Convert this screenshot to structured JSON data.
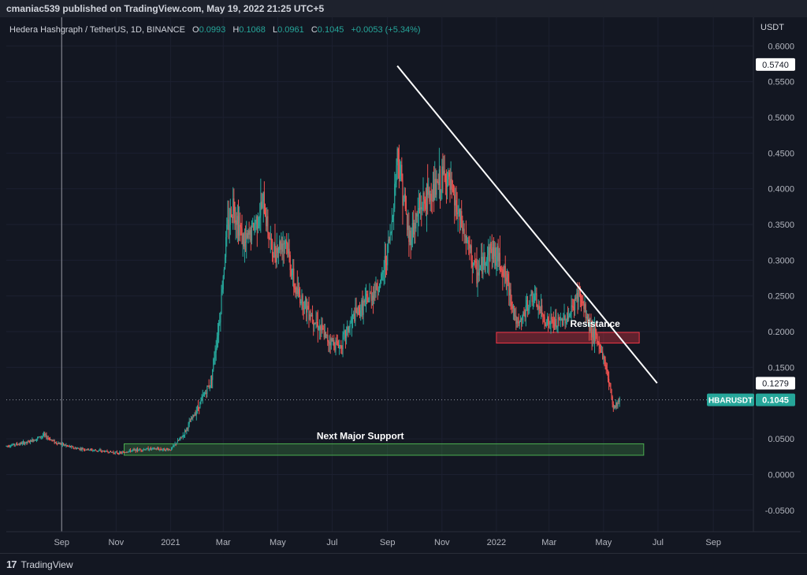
{
  "header": {
    "published": "cmaniac539 published on TradingView.com, May 19, 2022 21:25 UTC+5"
  },
  "footer": {
    "brand": "TradingView"
  },
  "chart_data": {
    "type": "line",
    "title": "Hedera Hashgraph / TetherUS, 1D, BINANCE",
    "ohlc": {
      "open_label": "O",
      "open": "0.0993",
      "high_label": "H",
      "high": "0.1068",
      "low_label": "L",
      "low": "0.0961",
      "close_label": "C",
      "close": "0.1045",
      "change": "+0.0053 (+5.34%)"
    },
    "currency": "USDT",
    "ylim": [
      -0.08,
      0.64
    ],
    "y_ticks": [
      {
        "value": 0.6,
        "label": "0.6000"
      },
      {
        "value": 0.55,
        "label": "0.5500"
      },
      {
        "value": 0.5,
        "label": "0.5000"
      },
      {
        "value": 0.45,
        "label": "0.4500"
      },
      {
        "value": 0.4,
        "label": "0.4000"
      },
      {
        "value": 0.35,
        "label": "0.3500"
      },
      {
        "value": 0.3,
        "label": "0.3000"
      },
      {
        "value": 0.25,
        "label": "0.2500"
      },
      {
        "value": 0.2,
        "label": "0.2000"
      },
      {
        "value": 0.15,
        "label": "0.1500"
      },
      {
        "value": 0.05,
        "label": "0.0500"
      },
      {
        "value": 0.0,
        "label": "0.0000"
      },
      {
        "value": -0.05,
        "label": "-0.0500"
      }
    ],
    "x_range": [
      "2020-07-01",
      "2022-10-15"
    ],
    "x_ticks": [
      {
        "date": "2020-09-01",
        "label": "Sep"
      },
      {
        "date": "2020-11-01",
        "label": "Nov"
      },
      {
        "date": "2021-01-01",
        "label": "2021"
      },
      {
        "date": "2021-03-01",
        "label": "Mar"
      },
      {
        "date": "2021-05-01",
        "label": "May"
      },
      {
        "date": "2021-07-01",
        "label": "Jul"
      },
      {
        "date": "2021-09-01",
        "label": "Sep"
      },
      {
        "date": "2021-11-01",
        "label": "Nov"
      },
      {
        "date": "2022-01-01",
        "label": "2022"
      },
      {
        "date": "2022-03-01",
        "label": "Mar"
      },
      {
        "date": "2022-05-01",
        "label": "May"
      },
      {
        "date": "2022-07-01",
        "label": "Jul"
      },
      {
        "date": "2022-09-01",
        "label": "Sep"
      }
    ],
    "series": [
      {
        "name": "HBARUSDT",
        "color": "#b3b7c2",
        "points": [
          [
            "2020-07-01",
            0.04
          ],
          [
            "2020-07-25",
            0.045
          ],
          [
            "2020-08-12",
            0.055
          ],
          [
            "2020-08-25",
            0.045
          ],
          [
            "2020-09-15",
            0.037
          ],
          [
            "2020-10-15",
            0.033
          ],
          [
            "2020-11-05",
            0.03
          ],
          [
            "2020-11-20",
            0.034
          ],
          [
            "2020-12-10",
            0.036
          ],
          [
            "2021-01-01",
            0.035
          ],
          [
            "2021-01-15",
            0.055
          ],
          [
            "2021-02-01",
            0.095
          ],
          [
            "2021-02-15",
            0.13
          ],
          [
            "2021-02-25",
            0.22
          ],
          [
            "2021-03-05",
            0.34
          ],
          [
            "2021-03-12",
            0.38
          ],
          [
            "2021-03-25",
            0.32
          ],
          [
            "2021-04-05",
            0.35
          ],
          [
            "2021-04-15",
            0.38
          ],
          [
            "2021-04-25",
            0.31
          ],
          [
            "2021-05-10",
            0.33
          ],
          [
            "2021-05-20",
            0.26
          ],
          [
            "2021-06-05",
            0.23
          ],
          [
            "2021-06-25",
            0.19
          ],
          [
            "2021-07-10",
            0.18
          ],
          [
            "2021-07-25",
            0.22
          ],
          [
            "2021-08-10",
            0.245
          ],
          [
            "2021-08-25",
            0.27
          ],
          [
            "2021-09-05",
            0.34
          ],
          [
            "2021-09-12",
            0.45
          ],
          [
            "2021-09-18",
            0.4
          ],
          [
            "2021-09-25",
            0.33
          ],
          [
            "2021-10-10",
            0.38
          ],
          [
            "2021-10-25",
            0.4
          ],
          [
            "2021-11-05",
            0.42
          ],
          [
            "2021-11-15",
            0.38
          ],
          [
            "2021-11-25",
            0.34
          ],
          [
            "2021-12-10",
            0.28
          ],
          [
            "2021-12-25",
            0.315
          ],
          [
            "2022-01-05",
            0.3
          ],
          [
            "2022-01-15",
            0.26
          ],
          [
            "2022-01-25",
            0.205
          ],
          [
            "2022-02-10",
            0.25
          ],
          [
            "2022-02-25",
            0.215
          ],
          [
            "2022-03-10",
            0.21
          ],
          [
            "2022-03-25",
            0.225
          ],
          [
            "2022-04-03",
            0.255
          ],
          [
            "2022-04-15",
            0.21
          ],
          [
            "2022-04-28",
            0.175
          ],
          [
            "2022-05-05",
            0.145
          ],
          [
            "2022-05-12",
            0.095
          ],
          [
            "2022-05-19",
            0.1045
          ]
        ]
      }
    ],
    "last_price": {
      "value": 0.1045,
      "label": "0.1045",
      "series_label": "HBARUSDT"
    },
    "marker_labels": [
      {
        "value": 0.574,
        "label": "0.5740"
      },
      {
        "value": 0.1279,
        "label": "0.1279"
      }
    ],
    "annotations": {
      "trendline": {
        "from": [
          "2021-09-12",
          0.572
        ],
        "to": [
          "2022-06-30",
          0.128
        ],
        "color": "#ffffff"
      },
      "resistance": {
        "label": "Resistance",
        "from_date": "2022-01-01",
        "to_date": "2022-06-10",
        "low": 0.184,
        "high": 0.199,
        "color": "#f23645"
      },
      "support": {
        "label": "Next Major Support",
        "from_date": "2020-11-10",
        "to_date": "2022-06-15",
        "low": 0.027,
        "high": 0.043,
        "color": "#4caf50"
      },
      "vertical_line_date": "2020-09-01"
    },
    "colors": {
      "background": "#131722",
      "up": "#26a69a",
      "down": "#ef5350",
      "grid": "#1c2030"
    }
  }
}
